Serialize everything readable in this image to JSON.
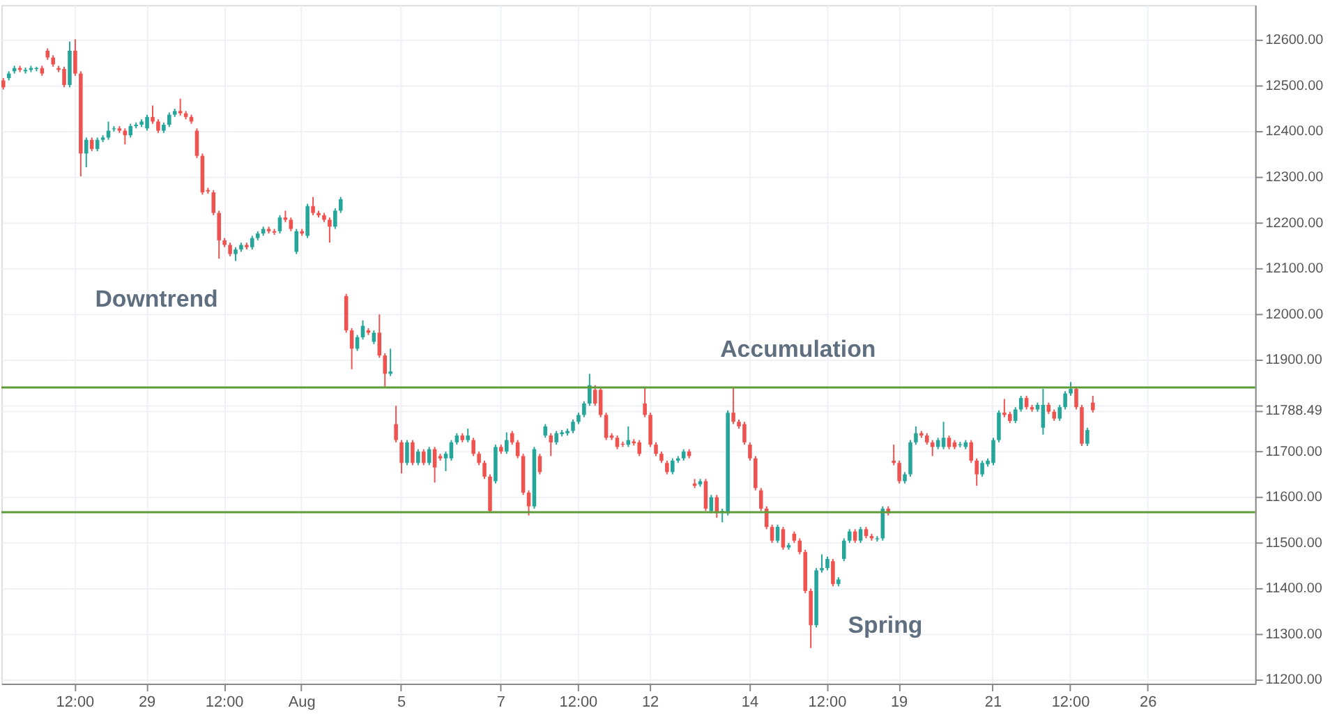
{
  "chart_data": {
    "type": "candlestick",
    "categories": [
      null,
      null,
      null,
      null,
      null,
      null,
      null,
      null,
      null,
      null,
      null,
      null,
      null,
      "12:00",
      null,
      null,
      null,
      null,
      null,
      null,
      null,
      null,
      null,
      null,
      null,
      null,
      "29",
      null,
      null,
      null,
      null,
      null,
      null,
      null,
      null,
      null,
      null,
      null,
      null,
      null,
      "12:00",
      null,
      null,
      null,
      null,
      null,
      null,
      null,
      null,
      null,
      null,
      null,
      null,
      null,
      "Aug",
      null,
      null,
      null,
      null,
      null,
      null,
      null,
      null,
      null,
      null,
      null,
      null,
      null,
      null,
      null,
      null,
      null,
      "5",
      null,
      null,
      null,
      null,
      null,
      null,
      null,
      null,
      null,
      null,
      null,
      null,
      null,
      null,
      null,
      null,
      null,
      "7",
      null,
      null,
      null,
      null,
      null,
      null,
      null,
      null,
      null,
      null,
      null,
      null,
      null,
      "12:00",
      null,
      null,
      null,
      null,
      null,
      null,
      null,
      null,
      null,
      null,
      null,
      null,
      "12",
      null,
      null,
      null,
      null,
      null,
      null,
      null,
      null,
      null,
      null,
      null,
      null,
      null,
      null,
      null,
      null,
      null,
      "14",
      null,
      null,
      null,
      null,
      null,
      null,
      null,
      null,
      null,
      null,
      null,
      null,
      null,
      "12:00",
      null,
      null,
      null,
      null,
      null,
      null,
      null,
      null,
      null,
      null,
      null,
      null,
      "19",
      null,
      null,
      null,
      null,
      null,
      null,
      null,
      null,
      null,
      null,
      null,
      null,
      null,
      null,
      null,
      null,
      "21",
      null,
      null,
      null,
      null,
      null,
      null,
      null,
      null,
      null,
      null,
      null,
      null,
      null,
      "12:00",
      null,
      null,
      null,
      null,
      null,
      null,
      null,
      null,
      null,
      null,
      null,
      null,
      null,
      "26",
      null,
      null,
      null,
      null,
      null,
      null,
      null,
      null,
      null,
      null,
      null,
      null,
      null,
      null,
      null,
      null,
      null,
      null,
      null
    ],
    "ohlc": [
      [
        12510,
        12515,
        12490,
        12495
      ],
      [
        12515,
        12530,
        12510,
        12525
      ],
      [
        12530,
        12542,
        12525,
        12537
      ],
      [
        12537,
        12542,
        12528,
        12533
      ],
      [
        12530,
        12538,
        12525,
        12533
      ],
      [
        12533,
        12542,
        12528,
        12537
      ],
      [
        12535,
        12540,
        12530,
        12537
      ],
      [
        12537,
        12542,
        12520,
        12525
      ],
      [
        12575,
        12580,
        12555,
        12560
      ],
      [
        12560,
        12565,
        12540,
        12545
      ],
      [
        12537,
        12542,
        12528,
        12533
      ],
      [
        12535,
        12540,
        12495,
        12500
      ],
      [
        12500,
        12595,
        12495,
        12575
      ],
      [
        12575,
        12600,
        12520,
        12525
      ],
      [
        12525,
        12530,
        12300,
        12350
      ],
      [
        12350,
        12385,
        12320,
        12380
      ],
      [
        12380,
        12385,
        12355,
        12360
      ],
      [
        12360,
        12385,
        12355,
        12380
      ],
      [
        12380,
        12390,
        12375,
        12385
      ],
      [
        12385,
        12420,
        12380,
        12400
      ],
      [
        12403,
        12410,
        12398,
        12405
      ],
      [
        12405,
        12410,
        12395,
        12400
      ],
      [
        12400,
        12405,
        12370,
        12390
      ],
      [
        12390,
        12415,
        12385,
        12410
      ],
      [
        12410,
        12418,
        12405,
        12413
      ],
      [
        12413,
        12425,
        12408,
        12420
      ],
      [
        12405,
        12435,
        12400,
        12430
      ],
      [
        12430,
        12455,
        12415,
        12420
      ],
      [
        12420,
        12425,
        12395,
        12400
      ],
      [
        12400,
        12418,
        12395,
        12413
      ],
      [
        12413,
        12440,
        12408,
        12435
      ],
      [
        12435,
        12448,
        12430,
        12443
      ],
      [
        12443,
        12470,
        12433,
        12438
      ],
      [
        12438,
        12443,
        12425,
        12430
      ],
      [
        12430,
        12435,
        12415,
        12420
      ],
      [
        12400,
        12405,
        12340,
        12345
      ],
      [
        12345,
        12350,
        12260,
        12265
      ],
      [
        12270,
        12275,
        12262,
        12267
      ],
      [
        12265,
        12270,
        12215,
        12220
      ],
      [
        12220,
        12225,
        12120,
        12160
      ],
      [
        12160,
        12165,
        12145,
        12150
      ],
      [
        12150,
        12155,
        12125,
        12130
      ],
      [
        12130,
        12145,
        12115,
        12140
      ],
      [
        12140,
        12155,
        12135,
        12150
      ],
      [
        12150,
        12155,
        12140,
        12145
      ],
      [
        12145,
        12170,
        12140,
        12165
      ],
      [
        12165,
        12180,
        12160,
        12175
      ],
      [
        12175,
        12190,
        12170,
        12185
      ],
      [
        12185,
        12190,
        12175,
        12180
      ],
      [
        12180,
        12185,
        12172,
        12177
      ],
      [
        12180,
        12215,
        12175,
        12210
      ],
      [
        12210,
        12225,
        12200,
        12205
      ],
      [
        12205,
        12210,
        12180,
        12185
      ],
      [
        12135,
        12185,
        12130,
        12180
      ],
      [
        12180,
        12185,
        12170,
        12175
      ],
      [
        12170,
        12240,
        12165,
        12235
      ],
      [
        12235,
        12255,
        12215,
        12220
      ],
      [
        12220,
        12225,
        12210,
        12215
      ],
      [
        12215,
        12220,
        12200,
        12205
      ],
      [
        12205,
        12210,
        12155,
        12190
      ],
      [
        12190,
        12230,
        12185,
        12225
      ],
      [
        12225,
        12255,
        12220,
        12250
      ],
      [
        12038,
        12043,
        11958,
        11963
      ],
      [
        11963,
        11968,
        11878,
        11923
      ],
      [
        11923,
        11953,
        11918,
        11948
      ],
      [
        11948,
        11985,
        11943,
        11973
      ],
      [
        11963,
        11968,
        11953,
        11958
      ],
      [
        11938,
        11963,
        11933,
        11958
      ],
      [
        11958,
        11998,
        11903,
        11908
      ],
      [
        11908,
        11913,
        11840,
        11868
      ],
      [
        11868,
        11923,
        11863,
        11873
      ],
      [
        11758,
        11798,
        11718,
        11723
      ],
      [
        11718,
        11723,
        11650,
        11673
      ],
      [
        11673,
        11723,
        11668,
        11718
      ],
      [
        11718,
        11723,
        11668,
        11673
      ],
      [
        11673,
        11703,
        11668,
        11698
      ],
      [
        11698,
        11703,
        11668,
        11673
      ],
      [
        11673,
        11708,
        11668,
        11703
      ],
      [
        11703,
        11708,
        11630,
        11663
      ],
      [
        11688,
        11693,
        11678,
        11683
      ],
      [
        11683,
        11698,
        11655,
        11693
      ],
      [
        11683,
        11723,
        11678,
        11718
      ],
      [
        11718,
        11738,
        11713,
        11733
      ],
      [
        11733,
        11738,
        11718,
        11723
      ],
      [
        11723,
        11748,
        11718,
        11733
      ],
      [
        11723,
        11728,
        11688,
        11693
      ],
      [
        11693,
        11698,
        11668,
        11673
      ],
      [
        11673,
        11678,
        11638,
        11643
      ],
      [
        11643,
        11648,
        11565,
        11568
      ],
      [
        11633,
        11713,
        11628,
        11708
      ],
      [
        11708,
        11713,
        11693,
        11698
      ],
      [
        11698,
        11740,
        11693,
        11723
      ],
      [
        11738,
        11743,
        11713,
        11718
      ],
      [
        11718,
        11723,
        11683,
        11688
      ],
      [
        11688,
        11693,
        11603,
        11608
      ],
      [
        11608,
        11613,
        11558,
        11578
      ],
      [
        11578,
        11708,
        11573,
        11703
      ],
      [
        11688,
        11693,
        11648,
        11653
      ],
      [
        11733,
        11758,
        11728,
        11753
      ],
      [
        11733,
        11738,
        11688,
        11718
      ],
      [
        11718,
        11743,
        11713,
        11738
      ],
      [
        11736,
        11745,
        11731,
        11740
      ],
      [
        11738,
        11748,
        11733,
        11743
      ],
      [
        11743,
        11768,
        11738,
        11763
      ],
      [
        11763,
        11783,
        11758,
        11778
      ],
      [
        11778,
        11808,
        11773,
        11803
      ],
      [
        11803,
        11868,
        11798,
        11843
      ],
      [
        11833,
        11843,
        11798,
        11803
      ],
      [
        11833,
        11838,
        11773,
        11778
      ],
      [
        11778,
        11783,
        11723,
        11728
      ],
      [
        11733,
        11738,
        11723,
        11728
      ],
      [
        11728,
        11733,
        11703,
        11708
      ],
      [
        11715,
        11720,
        11708,
        11713
      ],
      [
        11713,
        11753,
        11708,
        11723
      ],
      [
        11720,
        11725,
        11711,
        11716
      ],
      [
        11718,
        11723,
        11688,
        11693
      ],
      [
        11803,
        11838,
        11773,
        11778
      ],
      [
        11778,
        11783,
        11708,
        11713
      ],
      [
        11713,
        11718,
        11688,
        11693
      ],
      [
        11693,
        11698,
        11673,
        11678
      ],
      [
        11673,
        11678,
        11648,
        11653
      ],
      [
        11653,
        11683,
        11648,
        11678
      ],
      [
        11678,
        11688,
        11673,
        11683
      ],
      [
        11683,
        11703,
        11678,
        11698
      ],
      [
        11698,
        11703,
        11683,
        11688
      ],
      [
        11628,
        11638,
        11618,
        11623
      ],
      [
        11626,
        11638,
        11621,
        11633
      ],
      [
        11633,
        11638,
        11568,
        11573
      ],
      [
        11568,
        11603,
        11563,
        11598
      ],
      [
        11598,
        11603,
        11553,
        11563
      ],
      [
        11563,
        11573,
        11543,
        11568
      ],
      [
        11563,
        11788,
        11558,
        11783
      ],
      [
        11783,
        11838,
        11758,
        11763
      ],
      [
        11763,
        11768,
        11748,
        11753
      ],
      [
        11758,
        11763,
        11713,
        11718
      ],
      [
        11713,
        11718,
        11678,
        11683
      ],
      [
        11683,
        11688,
        11613,
        11618
      ],
      [
        11613,
        11618,
        11568,
        11573
      ],
      [
        11573,
        11578,
        11528,
        11533
      ],
      [
        11533,
        11538,
        11498,
        11503
      ],
      [
        11503,
        11538,
        11498,
        11533
      ],
      [
        11528,
        11533,
        11483,
        11488
      ],
      [
        11488,
        11498,
        11483,
        11493
      ],
      [
        11518,
        11523,
        11498,
        11503
      ],
      [
        11503,
        11508,
        11473,
        11478
      ],
      [
        11478,
        11483,
        11388,
        11393
      ],
      [
        11393,
        11398,
        11268,
        11318
      ],
      [
        11318,
        11443,
        11313,
        11438
      ],
      [
        11438,
        11473,
        11433,
        11443
      ],
      [
        11443,
        11468,
        11438,
        11463
      ],
      [
        11458,
        11463,
        11403,
        11408
      ],
      [
        11408,
        11423,
        11403,
        11418
      ],
      [
        11463,
        11508,
        11458,
        11503
      ],
      [
        11503,
        11528,
        11498,
        11523
      ],
      [
        11523,
        11528,
        11498,
        11503
      ],
      [
        11503,
        11533,
        11498,
        11528
      ],
      [
        11528,
        11533,
        11508,
        11513
      ],
      [
        11513,
        11518,
        11503,
        11508
      ],
      [
        11506,
        11513,
        11501,
        11508
      ],
      [
        11508,
        11578,
        11503,
        11573
      ],
      [
        11573,
        11578,
        11558,
        11563
      ],
      [
        11678,
        11713,
        11668,
        11673
      ],
      [
        11673,
        11678,
        11628,
        11633
      ],
      [
        11633,
        11653,
        11628,
        11648
      ],
      [
        11648,
        11723,
        11643,
        11718
      ],
      [
        11718,
        11753,
        11713,
        11738
      ],
      [
        11738,
        11743,
        11728,
        11733
      ],
      [
        11733,
        11738,
        11713,
        11718
      ],
      [
        11718,
        11723,
        11688,
        11708
      ],
      [
        11708,
        11728,
        11703,
        11723
      ],
      [
        11708,
        11763,
        11703,
        11728
      ],
      [
        11728,
        11733,
        11703,
        11708
      ],
      [
        11718,
        11723,
        11703,
        11708
      ],
      [
        11712,
        11719,
        11707,
        11714
      ],
      [
        11708,
        11723,
        11703,
        11718
      ],
      [
        11718,
        11723,
        11673,
        11678
      ],
      [
        11678,
        11683,
        11623,
        11648
      ],
      [
        11648,
        11678,
        11643,
        11673
      ],
      [
        11670,
        11683,
        11665,
        11678
      ],
      [
        11673,
        11728,
        11668,
        11723
      ],
      [
        11723,
        11788,
        11718,
        11783
      ],
      [
        11783,
        11813,
        11773,
        11778
      ],
      [
        11780,
        11785,
        11760,
        11765
      ],
      [
        11765,
        11795,
        11760,
        11790
      ],
      [
        11790,
        11820,
        11785,
        11815
      ],
      [
        11815,
        11820,
        11790,
        11795
      ],
      [
        11795,
        11800,
        11785,
        11790
      ],
      [
        11790,
        11805,
        11785,
        11800
      ],
      [
        11750,
        11835,
        11735,
        11800
      ],
      [
        11800,
        11805,
        11780,
        11785
      ],
      [
        11785,
        11790,
        11765,
        11770
      ],
      [
        11770,
        11800,
        11765,
        11795
      ],
      [
        11795,
        11830,
        11790,
        11825
      ],
      [
        11825,
        11850,
        11820,
        11835
      ],
      [
        11835,
        11840,
        11790,
        11795
      ],
      [
        11795,
        11800,
        11710,
        11715
      ],
      [
        11715,
        11750,
        11710,
        11745
      ],
      [
        11805,
        11820,
        11783,
        11788.49
      ],
      null,
      null,
      null,
      null,
      null,
      null,
      null,
      null,
      null,
      null,
      null,
      null,
      null,
      null,
      null,
      null,
      null,
      null,
      null,
      null,
      null,
      null,
      null,
      null,
      null,
      null,
      null,
      null,
      null
    ],
    "colors": [
      "#ef5350",
      "#26a69a",
      "#26a69a",
      "#ef5350",
      "#26a69a",
      "#26a69a",
      "#26a69a",
      "#ef5350",
      "#ef5350",
      "#ef5350",
      "#ef5350",
      "#ef5350",
      "#26a69a",
      "#ef5350",
      "#ef5350",
      "#26a69a",
      "#ef5350",
      "#26a69a",
      "#26a69a",
      "#26a69a",
      "#26a69a",
      "#ef5350",
      "#ef5350",
      "#26a69a",
      "#26a69a",
      "#26a69a",
      "#26a69a",
      "#ef5350",
      "#ef5350",
      "#26a69a",
      "#26a69a",
      "#26a69a",
      "#ef5350",
      "#ef5350",
      "#ef5350",
      "#ef5350",
      "#ef5350",
      "#ef5350",
      "#ef5350",
      "#ef5350",
      "#ef5350",
      "#ef5350",
      "#26a69a",
      "#26a69a",
      "#ef5350",
      "#26a69a",
      "#26a69a",
      "#26a69a",
      "#ef5350",
      "#ef5350",
      "#26a69a",
      "#ef5350",
      "#ef5350",
      "#26a69a",
      "#ef5350",
      "#26a69a",
      "#ef5350",
      "#ef5350",
      "#ef5350",
      "#ef5350",
      "#26a69a",
      "#26a69a",
      "#ef5350",
      "#ef5350",
      "#26a69a",
      "#26a69a",
      "#ef5350",
      "#26a69a",
      "#ef5350",
      "#ef5350",
      "#26a69a",
      "#ef5350",
      "#ef5350",
      "#26a69a",
      "#ef5350",
      "#26a69a",
      "#ef5350",
      "#26a69a",
      "#ef5350",
      "#ef5350",
      "#26a69a",
      "#26a69a",
      "#26a69a",
      "#ef5350",
      "#26a69a",
      "#ef5350",
      "#ef5350",
      "#ef5350",
      "#ef5350",
      "#26a69a",
      "#ef5350",
      "#26a69a",
      "#ef5350",
      "#ef5350",
      "#ef5350",
      "#ef5350",
      "#26a69a",
      "#ef5350",
      "#26a69a",
      "#ef5350",
      "#26a69a",
      "#26a69a",
      "#26a69a",
      "#26a69a",
      "#26a69a",
      "#26a69a",
      "#26a69a",
      "#ef5350",
      "#ef5350",
      "#ef5350",
      "#ef5350",
      "#ef5350",
      "#ef5350",
      "#26a69a",
      "#ef5350",
      "#ef5350",
      "#ef5350",
      "#ef5350",
      "#ef5350",
      "#ef5350",
      "#ef5350",
      "#26a69a",
      "#26a69a",
      "#26a69a",
      "#ef5350",
      "#ef5350",
      "#26a69a",
      "#ef5350",
      "#26a69a",
      "#ef5350",
      "#26a69a",
      "#26a69a",
      "#ef5350",
      "#ef5350",
      "#ef5350",
      "#ef5350",
      "#ef5350",
      "#ef5350",
      "#ef5350",
      "#ef5350",
      "#26a69a",
      "#ef5350",
      "#26a69a",
      "#ef5350",
      "#ef5350",
      "#ef5350",
      "#ef5350",
      "#26a69a",
      "#26a69a",
      "#26a69a",
      "#ef5350",
      "#26a69a",
      "#26a69a",
      "#26a69a",
      "#ef5350",
      "#26a69a",
      "#ef5350",
      "#ef5350",
      "#26a69a",
      "#26a69a",
      "#ef5350",
      "#ef5350",
      "#ef5350",
      "#26a69a",
      "#26a69a",
      "#26a69a",
      "#ef5350",
      "#ef5350",
      "#ef5350",
      "#26a69a",
      "#26a69a",
      "#ef5350",
      "#ef5350",
      "#26a69a",
      "#26a69a",
      "#ef5350",
      "#ef5350",
      "#26a69a",
      "#26a69a",
      "#26a69a",
      "#26a69a",
      "#ef5350",
      "#ef5350",
      "#26a69a",
      "#26a69a",
      "#ef5350",
      "#ef5350",
      "#26a69a",
      "#26a69a",
      "#ef5350",
      "#ef5350",
      "#26a69a",
      "#26a69a",
      "#26a69a",
      "#ef5350",
      "#ef5350",
      "#26a69a",
      "#ef5350",
      null,
      null,
      null,
      null,
      null,
      null,
      null,
      null,
      null,
      null,
      null,
      null,
      null,
      null,
      null,
      null,
      null,
      null,
      null,
      null,
      null,
      null,
      null,
      null,
      null,
      null,
      null,
      null,
      null
    ],
    "ylim": [
      11190,
      12675
    ],
    "yticks": [
      {
        "value": 11200,
        "label": "11200.00"
      },
      {
        "value": 11300,
        "label": "11300.00"
      },
      {
        "value": 11400,
        "label": "11400.00"
      },
      {
        "value": 11500,
        "label": "11500.00"
      },
      {
        "value": 11600,
        "label": "11600.00"
      },
      {
        "value": 11700,
        "label": "11700.00"
      },
      {
        "value": 11788.49,
        "label": "11788.49"
      },
      {
        "value": 11800,
        "label": null
      },
      {
        "value": 11900,
        "label": "11900.00"
      },
      {
        "value": 12000,
        "label": "12000.00"
      },
      {
        "value": 12100,
        "label": "12100.00"
      },
      {
        "value": 12200,
        "label": "12200.00"
      },
      {
        "value": 12300,
        "label": "12300.00"
      },
      {
        "value": 12400,
        "label": "12400.00"
      },
      {
        "value": 12500,
        "label": "12500.00"
      },
      {
        "value": 12600,
        "label": "12600.00"
      }
    ],
    "grid": true,
    "ref_lines": [
      {
        "axis": "y",
        "value": 11838,
        "color": "#5e9c3a"
      },
      {
        "axis": "y",
        "value": 11565,
        "color": "#5e9c3a"
      }
    ],
    "annotations": [
      "Downtrend",
      "Accumulation",
      "Spring"
    ]
  }
}
